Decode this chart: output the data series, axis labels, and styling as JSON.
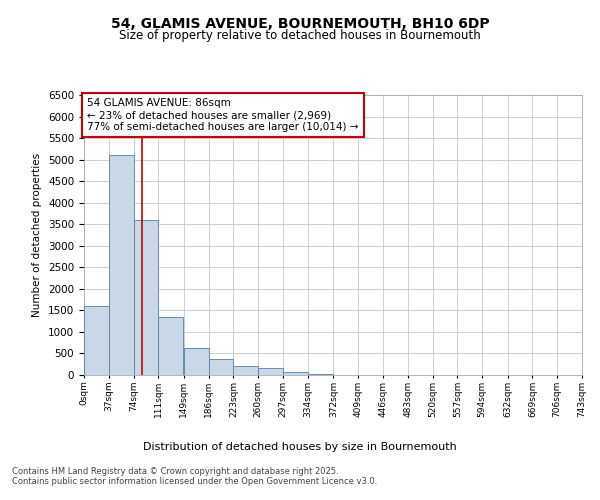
{
  "title_line1": "54, GLAMIS AVENUE, BOURNEMOUTH, BH10 6DP",
  "title_line2": "Size of property relative to detached houses in Bournemouth",
  "xlabel": "Distribution of detached houses by size in Bournemouth",
  "ylabel": "Number of detached properties",
  "footer_line1": "Contains HM Land Registry data © Crown copyright and database right 2025.",
  "footer_line2": "Contains public sector information licensed under the Open Government Licence v3.0.",
  "annotation_title": "54 GLAMIS AVENUE: 86sqm",
  "annotation_line1": "← 23% of detached houses are smaller (2,969)",
  "annotation_line2": "77% of semi-detached houses are larger (10,014) →",
  "vertical_line_x": 86,
  "bin_width": 37,
  "bin_edges": [
    0,
    37,
    74,
    111,
    149,
    186,
    223,
    260,
    297,
    334,
    372,
    409,
    446,
    483,
    520,
    557,
    594,
    632,
    669,
    706,
    743
  ],
  "bin_labels": [
    "0sqm",
    "37sqm",
    "74sqm",
    "111sqm",
    "149sqm",
    "186sqm",
    "223sqm",
    "260sqm",
    "297sqm",
    "334sqm",
    "372sqm",
    "409sqm",
    "446sqm",
    "483sqm",
    "520sqm",
    "557sqm",
    "594sqm",
    "632sqm",
    "669sqm",
    "706sqm",
    "743sqm"
  ],
  "bar_heights": [
    1600,
    5100,
    3600,
    1350,
    620,
    380,
    200,
    170,
    80,
    25,
    5,
    0,
    0,
    0,
    0,
    0,
    0,
    0,
    0,
    0
  ],
  "bar_color": "#c8d8e8",
  "bar_edge_color": "#5580a0",
  "vline_color": "#cc0000",
  "annotation_box_color": "#cc0000",
  "background_color": "#ffffff",
  "grid_color": "#c0c8d0",
  "ylim_max": 6500,
  "yticks": [
    0,
    500,
    1000,
    1500,
    2000,
    2500,
    3000,
    3500,
    4000,
    4500,
    5000,
    5500,
    6000,
    6500
  ]
}
